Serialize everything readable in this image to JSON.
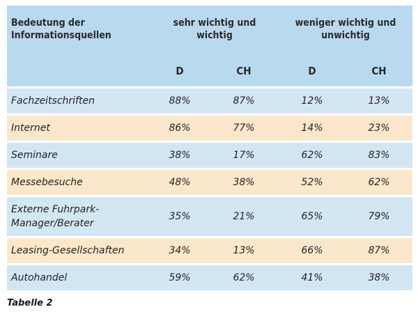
{
  "header": {
    "label_col": "Bedeutung der Informationsquellen",
    "group1": "sehr wichtig und wichtig",
    "group2": "weniger wichtig und unwichtig",
    "sub": [
      "D",
      "CH",
      "D",
      "CH"
    ]
  },
  "rows": [
    {
      "label": "Fachzeitschriften",
      "values": [
        "88%",
        "87%",
        "12%",
        "13%"
      ]
    },
    {
      "label": "Internet",
      "values": [
        "86%",
        "77%",
        "14%",
        "23%"
      ]
    },
    {
      "label": "Seminare",
      "values": [
        "38%",
        "17%",
        "62%",
        "83%"
      ]
    },
    {
      "label": "Messebesuche",
      "values": [
        "48%",
        "38%",
        "52%",
        "62%"
      ]
    },
    {
      "label": "Externe Fuhrpark-Manager/Berater",
      "values": [
        "35%",
        "21%",
        "65%",
        "79%"
      ]
    },
    {
      "label": "Leasing-Gesellschaften",
      "values": [
        "34%",
        "13%",
        "66%",
        "87%"
      ]
    },
    {
      "label": "Autohandel",
      "values": [
        "59%",
        "62%",
        "41%",
        "38%"
      ]
    }
  ],
  "caption": "Tabelle 2"
}
